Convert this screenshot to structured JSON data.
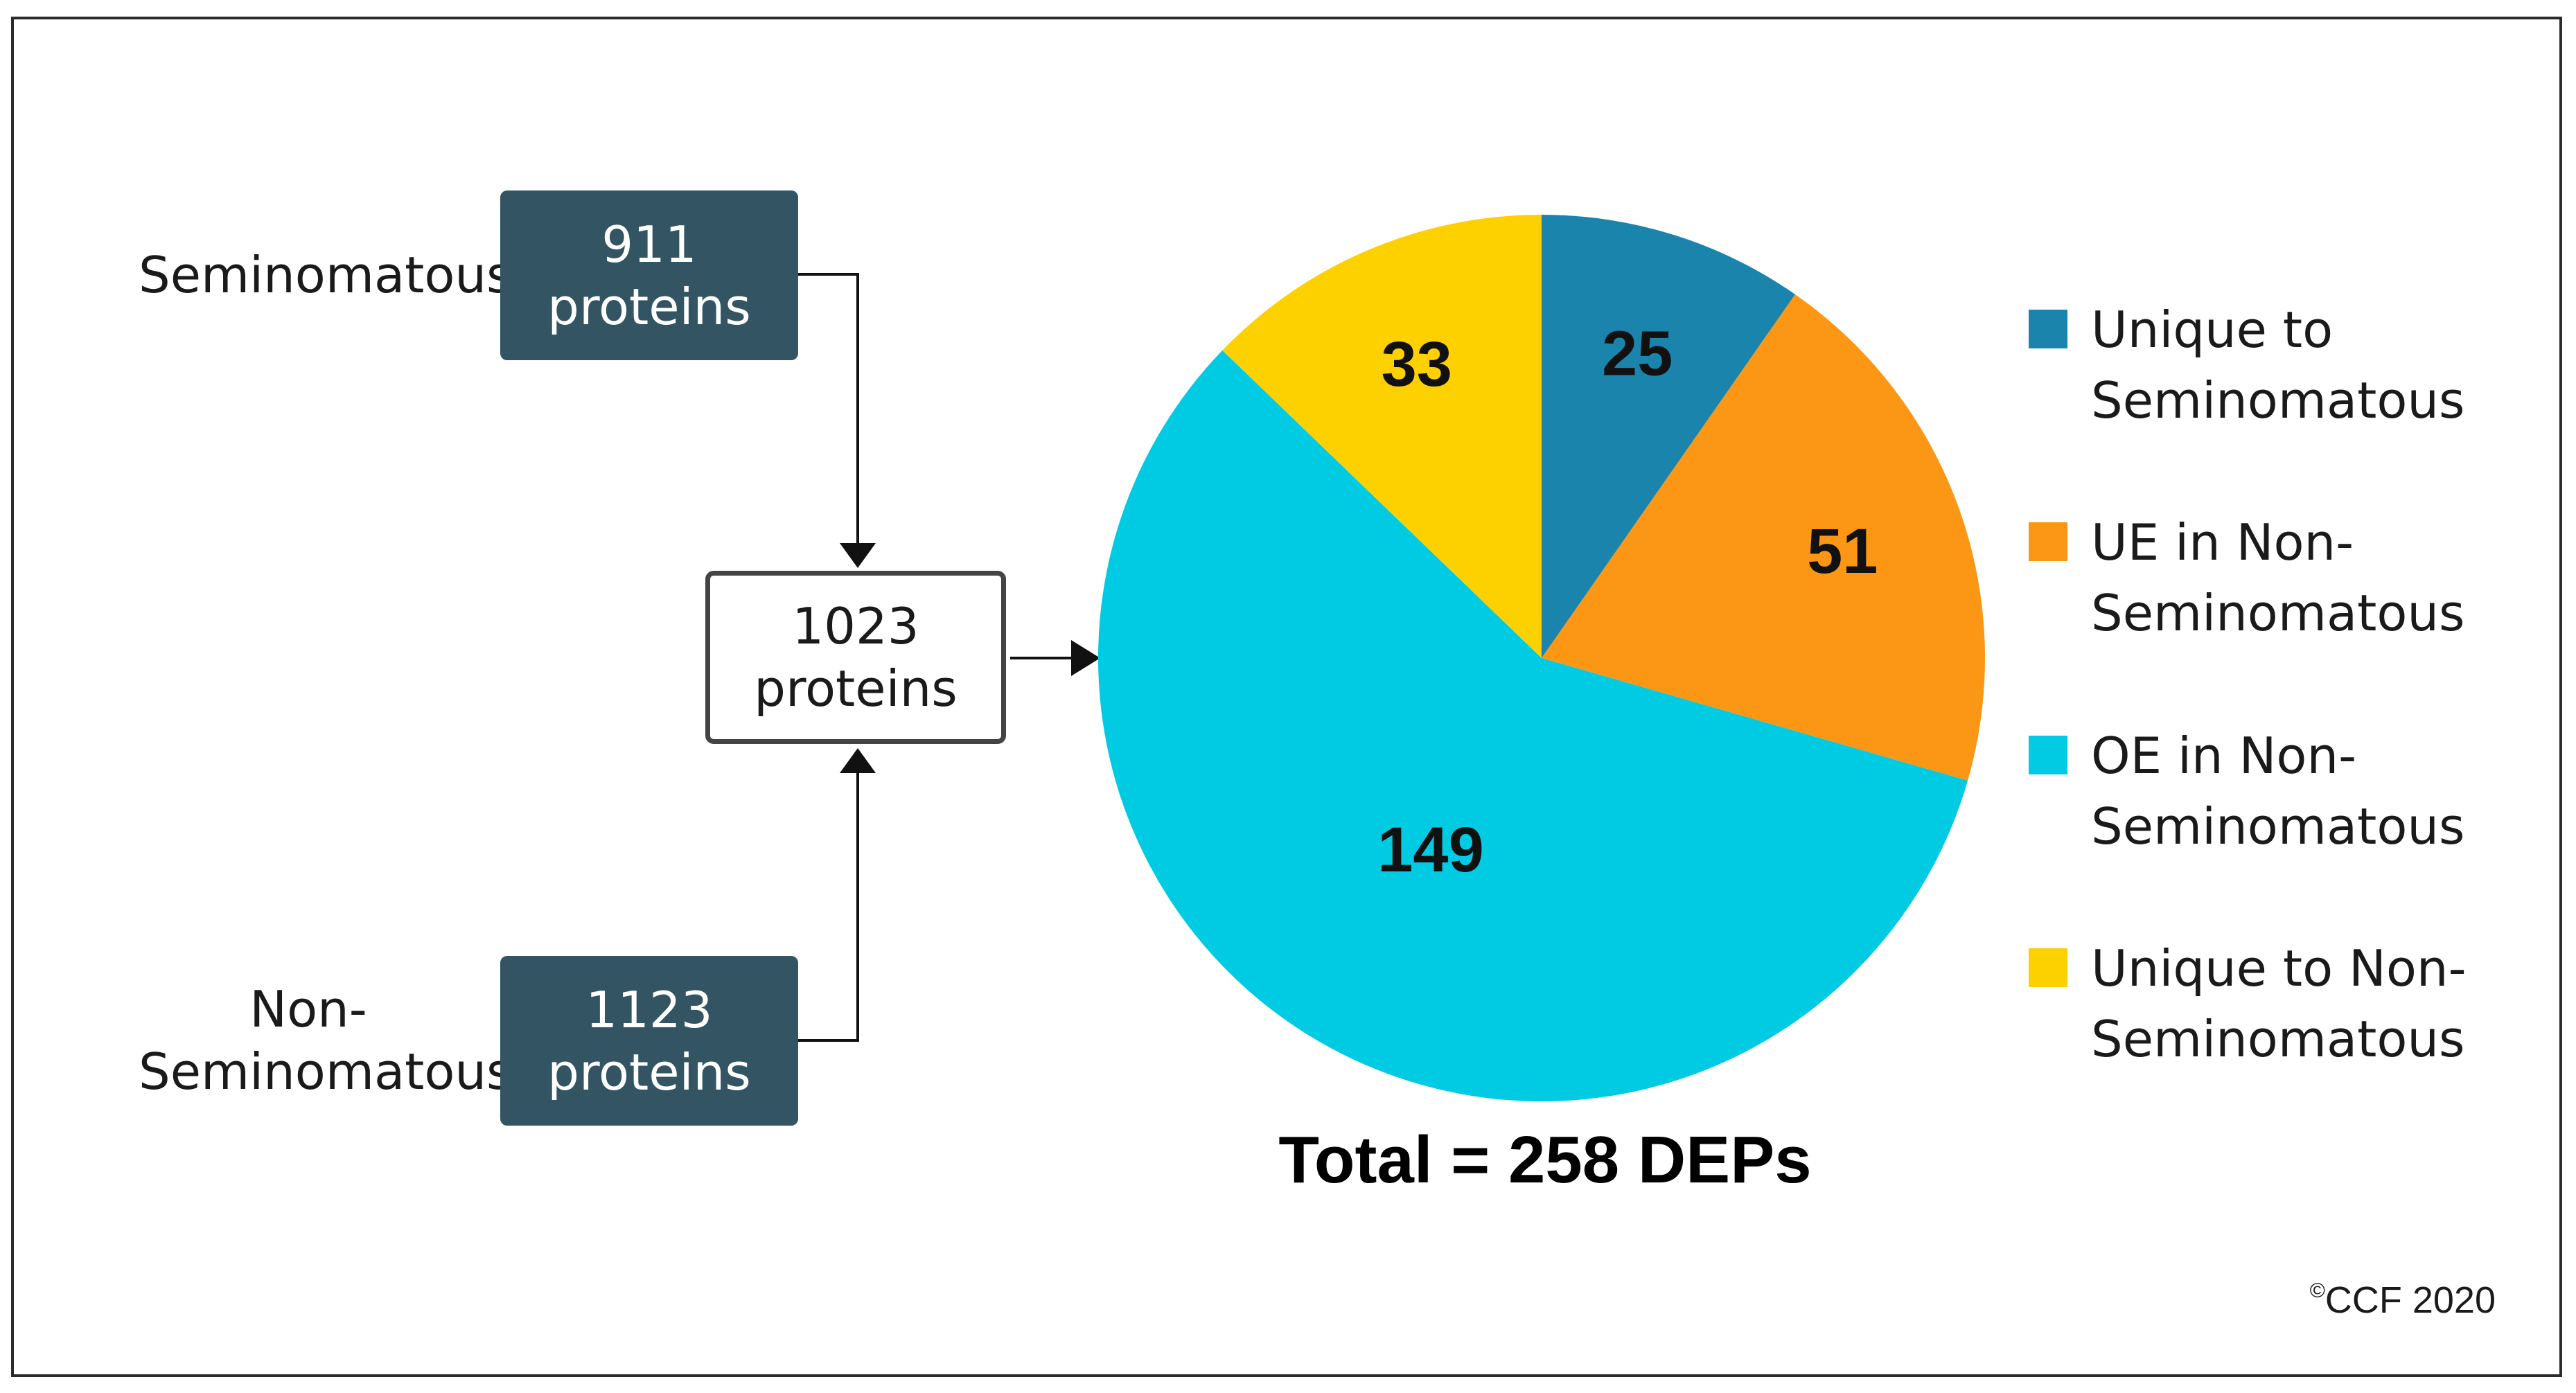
{
  "diagram": {
    "sources": [
      {
        "label": "Seminomatous",
        "count": "911",
        "unit": "proteins"
      },
      {
        "label_line1": "Non-",
        "label_line2": "Seminomatous",
        "count": "1123",
        "unit": "proteins"
      }
    ],
    "merged": {
      "count": "1023",
      "unit": "proteins"
    }
  },
  "chart_data": {
    "type": "pie",
    "total_label": "Total = 258 DEPs",
    "start_angle_deg": 0,
    "direction": "clockwise",
    "slices": [
      {
        "name_line1": "Unique to",
        "name_line2": "Seminomatous",
        "value": 25,
        "label": "25",
        "color": "#1a84ad"
      },
      {
        "name_line1": "UE in Non-",
        "name_line2": "Seminomatous",
        "value": 51,
        "label": "51",
        "color": "#fb9714"
      },
      {
        "name_line1": "OE in Non-",
        "name_line2": "Seminomatous",
        "value": 149,
        "label": "149",
        "color": "#00cbe2"
      },
      {
        "name_line1": "Unique to Non-",
        "name_line2": "Seminomatous",
        "value": 33,
        "label": "33",
        "color": "#fdd000"
      }
    ],
    "legend_position": "right"
  },
  "copyright": {
    "symbol": "©",
    "text": "CCF 2020"
  }
}
